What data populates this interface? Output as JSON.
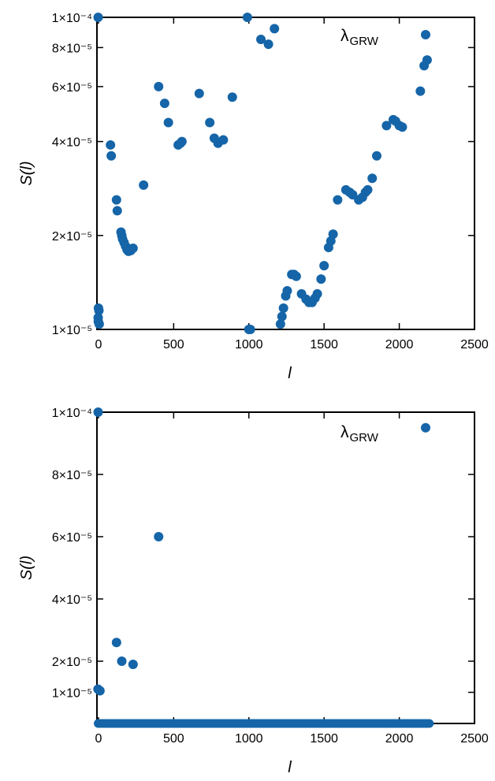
{
  "chart_data": [
    {
      "type": "scatter",
      "ylabel": "S(l)",
      "xlabel": "l",
      "annotation": {
        "symbol": "λ",
        "subscript": "GRW"
      },
      "color": "#1565a8",
      "xlim": [
        -10,
        2500
      ],
      "ylim": [
        1e-05,
        0.0001
      ],
      "yscale": "log",
      "xticks": [
        0,
        500,
        1000,
        1500,
        2000,
        2500
      ],
      "xtick_labels": [
        "0",
        "500",
        "1000",
        "1500",
        "2000",
        "2500"
      ],
      "yticks": [
        1e-05,
        2e-05,
        4e-05,
        6e-05,
        8e-05,
        0.0001
      ],
      "ytick_labels": [
        "1×10⁻⁵",
        "2×10⁻⁵",
        "4×10⁻⁵",
        "6×10⁻⁵",
        "8×10⁻⁵",
        "1×10⁻⁴"
      ],
      "points": [
        [
          -2,
          0.0001
        ],
        [
          0,
          1.17e-05
        ],
        [
          3,
          1.15e-05
        ],
        [
          -2,
          1.09e-05
        ],
        [
          -1,
          1.06e-05
        ],
        [
          5,
          1.04e-05
        ],
        [
          80,
          3.9e-05
        ],
        [
          85,
          3.6e-05
        ],
        [
          120,
          2.6e-05
        ],
        [
          125,
          2.4e-05
        ],
        [
          150,
          2.05e-05
        ],
        [
          155,
          2e-05
        ],
        [
          160,
          1.95e-05
        ],
        [
          170,
          1.9e-05
        ],
        [
          180,
          1.85e-05
        ],
        [
          190,
          1.8e-05
        ],
        [
          200,
          1.78e-05
        ],
        [
          215,
          1.79e-05
        ],
        [
          230,
          1.82e-05
        ],
        [
          300,
          2.9e-05
        ],
        [
          400,
          6e-05
        ],
        [
          440,
          5.3e-05
        ],
        [
          465,
          4.6e-05
        ],
        [
          530,
          3.9e-05
        ],
        [
          545,
          3.95e-05
        ],
        [
          555,
          4e-05
        ],
        [
          670,
          5.7e-05
        ],
        [
          740,
          4.6e-05
        ],
        [
          770,
          4.1e-05
        ],
        [
          795,
          3.95e-05
        ],
        [
          830,
          4.05e-05
        ],
        [
          890,
          5.55e-05
        ],
        [
          990,
          0.0001
        ],
        [
          1000,
          1e-05
        ],
        [
          1010,
          1e-05
        ],
        [
          1080,
          8.5e-05
        ],
        [
          1130,
          8.2e-05
        ],
        [
          1170,
          9.2e-05
        ],
        [
          1210,
          1.04e-05
        ],
        [
          1220,
          1.1e-05
        ],
        [
          1230,
          1.17e-05
        ],
        [
          1245,
          1.28e-05
        ],
        [
          1255,
          1.33e-05
        ],
        [
          1285,
          1.5e-05
        ],
        [
          1300,
          1.5e-05
        ],
        [
          1315,
          1.48e-05
        ],
        [
          1350,
          1.3e-05
        ],
        [
          1380,
          1.25e-05
        ],
        [
          1400,
          1.22e-05
        ],
        [
          1420,
          1.22e-05
        ],
        [
          1440,
          1.26e-05
        ],
        [
          1455,
          1.3e-05
        ],
        [
          1480,
          1.45e-05
        ],
        [
          1500,
          1.6e-05
        ],
        [
          1530,
          1.83e-05
        ],
        [
          1545,
          1.92e-05
        ],
        [
          1560,
          2.02e-05
        ],
        [
          1590,
          2.6e-05
        ],
        [
          1645,
          2.8e-05
        ],
        [
          1670,
          2.75e-05
        ],
        [
          1690,
          2.7e-05
        ],
        [
          1730,
          2.6e-05
        ],
        [
          1755,
          2.65e-05
        ],
        [
          1775,
          2.75e-05
        ],
        [
          1790,
          2.8e-05
        ],
        [
          1820,
          3.05e-05
        ],
        [
          1850,
          3.6e-05
        ],
        [
          1915,
          4.5e-05
        ],
        [
          1960,
          4.7e-05
        ],
        [
          1975,
          4.65e-05
        ],
        [
          2000,
          4.5e-05
        ],
        [
          2020,
          4.45e-05
        ],
        [
          2140,
          5.8e-05
        ],
        [
          2165,
          7e-05
        ],
        [
          2175,
          8.8e-05
        ],
        [
          2185,
          7.3e-05
        ]
      ]
    },
    {
      "type": "scatter",
      "ylabel": "S(l)",
      "xlabel": "l",
      "annotation": {
        "symbol": "λ",
        "subscript": "GRW"
      },
      "color": "#1565a8",
      "xlim": [
        -10,
        2500
      ],
      "ylim": [
        0,
        0.0001
      ],
      "yscale": "linear",
      "xticks": [
        0,
        500,
        1000,
        1500,
        2000,
        2500
      ],
      "xtick_labels": [
        "0",
        "500",
        "1000",
        "1500",
        "2000",
        "2500"
      ],
      "yticks": [
        1e-05,
        2e-05,
        4e-05,
        6e-05,
        8e-05,
        0.0001
      ],
      "ytick_labels": [
        "1×10⁻⁵",
        "2×10⁻⁵",
        "4×10⁻⁵",
        "6×10⁻⁵",
        "8×10⁻⁵",
        "1×10⁻⁴"
      ],
      "points": [
        [
          -2,
          0.0001
        ],
        [
          -3,
          1.1e-05
        ],
        [
          10,
          1.05e-05
        ],
        [
          120,
          2.6e-05
        ],
        [
          155,
          2e-05
        ],
        [
          230,
          1.9e-05
        ],
        [
          400,
          6e-05
        ],
        [
          2175,
          9.5e-05
        ]
      ],
      "baseline_series": {
        "x_range": [
          -2,
          2200
        ],
        "y": 0
      }
    }
  ]
}
